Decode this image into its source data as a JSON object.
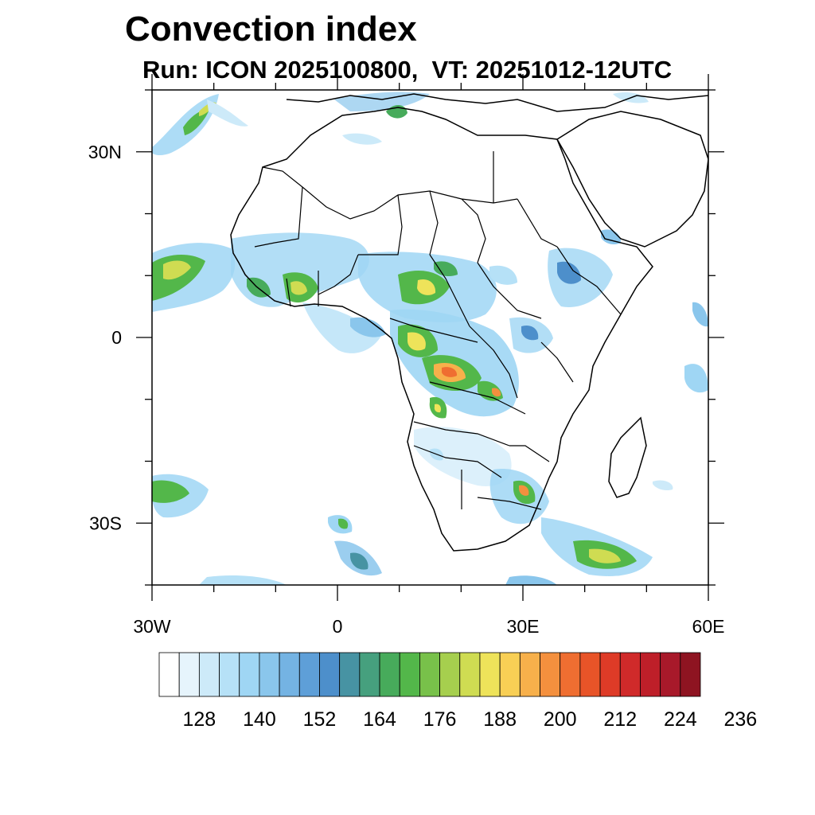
{
  "title": "Convection index",
  "subtitle": "Run: ICON 2025100800,  VT: 20251012-12UTC",
  "map": {
    "lon_range": [
      -30,
      60
    ],
    "lat_range": [
      -40,
      40
    ],
    "x_ticks": [
      {
        "lon": -30,
        "label": "30W"
      },
      {
        "lon": 0,
        "label": "0"
      },
      {
        "lon": 30,
        "label": "30E"
      },
      {
        "lon": 60,
        "label": "60E"
      }
    ],
    "y_ticks": [
      {
        "lat": 30,
        "label": "30N"
      },
      {
        "lat": 0,
        "label": "0"
      },
      {
        "lat": -30,
        "label": "30S"
      }
    ]
  },
  "colorbar": {
    "colors": [
      "#ffffff",
      "#e6f4fc",
      "#cdeaf9",
      "#b6e1f7",
      "#9fd6f4",
      "#8ac6ec",
      "#74b3e3",
      "#5e9fd8",
      "#4d8fcb",
      "#4793a3",
      "#46a07e",
      "#47ab5b",
      "#53b74a",
      "#78c14a",
      "#a6cf4e",
      "#cfdc52",
      "#eee35a",
      "#f8cf55",
      "#f7b04b",
      "#f4903e",
      "#ef6e31",
      "#e85428",
      "#de3b27",
      "#d02a2a",
      "#be1f29",
      "#a8192a",
      "#8e1421"
    ],
    "labels": [
      "128",
      "140",
      "152",
      "164",
      "176",
      "188",
      "200",
      "212",
      "224",
      "236"
    ]
  }
}
